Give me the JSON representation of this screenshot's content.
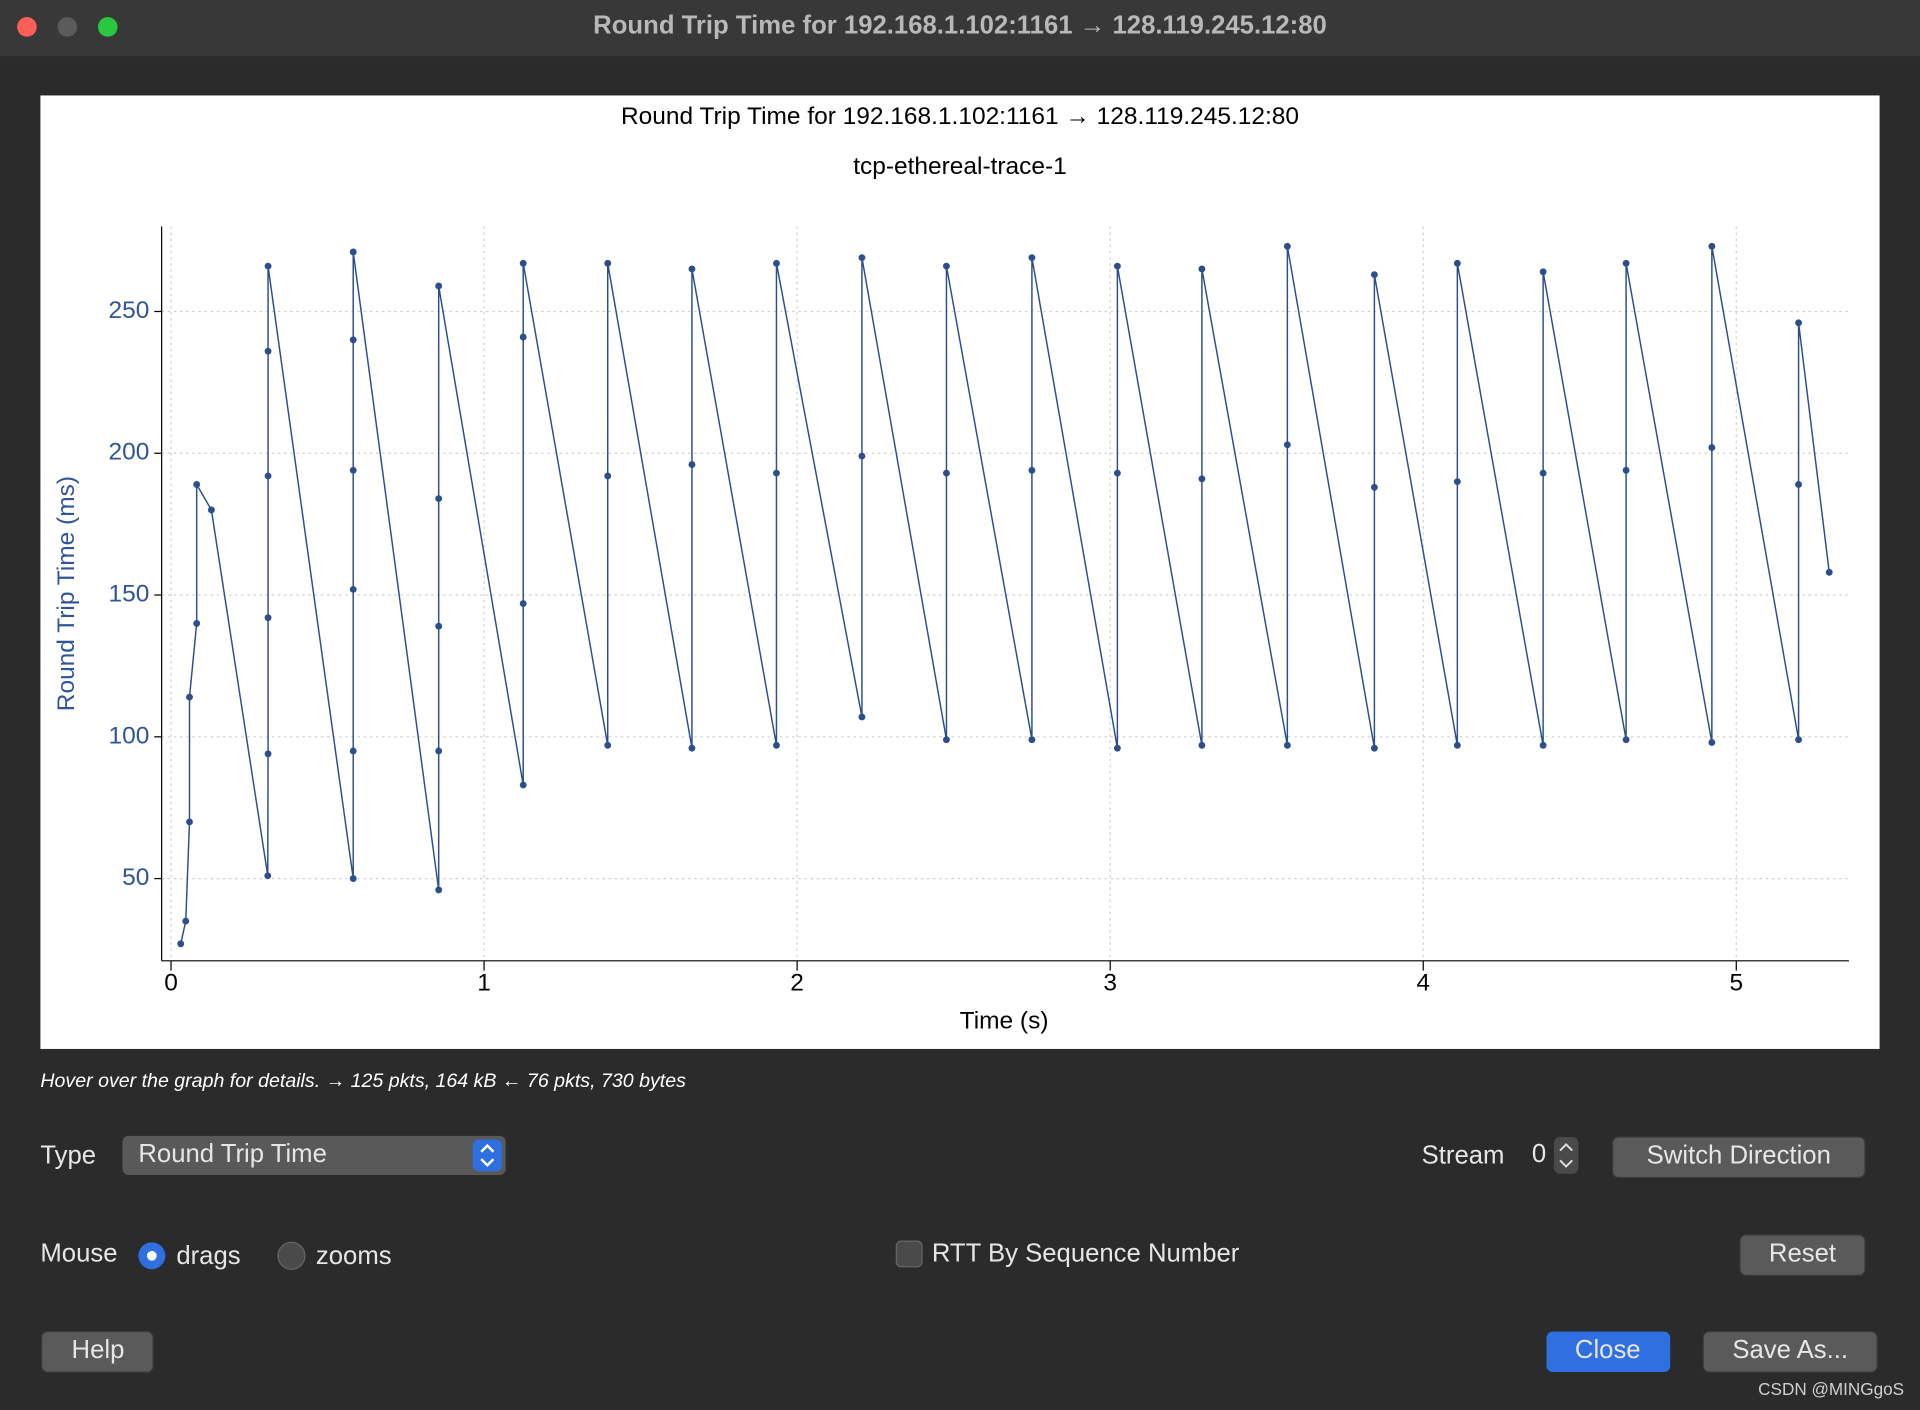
{
  "window": {
    "title": "Round Trip Time for 192.168.1.102:1161 → 128.119.245.12:80"
  },
  "chart_data": {
    "type": "line",
    "title": "Round Trip Time for 192.168.1.102:1161 → 128.119.245.12:80",
    "subtitle": "tcp-ethereal-trace-1",
    "x_label": "Time (s)",
    "y_label": "Round Trip Time (ms)",
    "x": [
      0.031,
      0.047,
      0.059,
      0.059,
      0.082,
      0.082,
      0.129,
      0.309,
      0.31,
      0.31,
      0.31,
      0.31,
      0.31,
      0.582,
      0.582,
      0.582,
      0.582,
      0.582,
      0.582,
      0.855,
      0.855,
      0.855,
      0.855,
      0.855,
      1.125,
      1.125,
      1.125,
      1.125,
      1.395,
      1.395,
      1.395,
      1.664,
      1.664,
      1.664,
      1.934,
      1.934,
      1.934,
      2.207,
      2.207,
      2.207,
      2.477,
      2.477,
      2.477,
      2.75,
      2.75,
      2.75,
      3.023,
      3.023,
      3.023,
      3.293,
      3.293,
      3.293,
      3.566,
      3.566,
      3.566,
      3.844,
      3.844,
      3.844,
      4.109,
      4.109,
      4.109,
      4.383,
      4.383,
      4.383,
      4.648,
      4.648,
      4.648,
      4.922,
      4.922,
      4.922,
      5.199,
      5.199,
      5.199,
      5.297
    ],
    "values": [
      27,
      35,
      70,
      114,
      140,
      189,
      180,
      51,
      94,
      142,
      192,
      236,
      266,
      50,
      95,
      152,
      194,
      240,
      271,
      46,
      95,
      139,
      184,
      259,
      83,
      147,
      241,
      267,
      97,
      192,
      267,
      96,
      196,
      265,
      97,
      193,
      267,
      107,
      199,
      269,
      99,
      193,
      266,
      99,
      194,
      269,
      96,
      193,
      266,
      97,
      191,
      265,
      97,
      203,
      273,
      96,
      188,
      263,
      97,
      190,
      267,
      97,
      193,
      264,
      99,
      194,
      267,
      98,
      202,
      273,
      99,
      189,
      246,
      158
    ],
    "color": "#2c4f8c",
    "xlim": [
      -0.03,
      5.36
    ],
    "ylim": [
      21,
      280
    ],
    "xticks": [
      0,
      1,
      2,
      3,
      4,
      5
    ],
    "yticks": [
      50,
      100,
      150,
      200,
      250
    ],
    "grid": true
  },
  "status": "Hover over the graph for details. → 125 pkts, 164 kB ← 76 pkts, 730 bytes",
  "controls": {
    "type_label": "Type",
    "type_value": "Round Trip Time",
    "stream_label": "Stream",
    "stream_value": 0,
    "switch_direction": "Switch Direction",
    "mouse_label": "Mouse",
    "drags": "drags",
    "zooms": "zooms",
    "rtt_by_seq": "RTT By Sequence Number",
    "reset": "Reset",
    "help": "Help",
    "close": "Close",
    "save_as": "Save As..."
  },
  "watermark": "CSDN @MINGgoS"
}
